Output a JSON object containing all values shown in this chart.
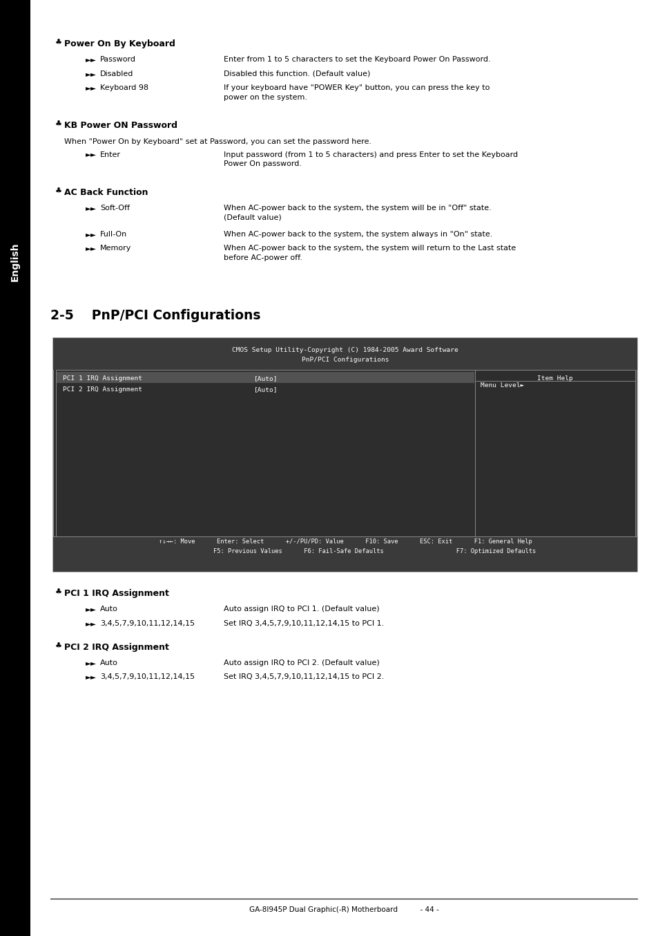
{
  "page_bg": "#ffffff",
  "sidebar_bg": "#000000",
  "sidebar_text": "English",
  "sidebar_text_color": "#ffffff",
  "title_section": "2-5    PnP/PCI Configurations",
  "footer_text": "GA-8I945P Dual Graphic(-R) Motherboard          - 44 -",
  "bios_header_line1": "CMOS Setup Utility-Copyright (C) 1984-2005 Award Software",
  "bios_header_line2": "PnP/PCI Configurations",
  "bios_bg": "#2d2d2d",
  "bios_header_bg": "#3a3a3a",
  "bios_text_color": "#ffffff",
  "bios_row1": "PCI 1 IRQ Assignment",
  "bios_row1_val": "[Auto]",
  "bios_row2": "PCI 2 IRQ Assignment",
  "bios_row2_val": "[Auto]",
  "bios_help_title": "Item Help",
  "bios_help_text": "Menu Level►",
  "bios_footer_line1": "↑↓→←: Move      Enter: Select      +/-/PU/PD: Value      F10: Save      ESC: Exit      F1: General Help",
  "bios_footer_line2": "                F5: Previous Values      F6: Fail-Safe Defaults                    F7: Optimized Defaults",
  "sections": [
    {
      "heading": "Power On By Keyboard",
      "items": [
        {
          "label": "Password",
          "desc": "Enter from 1 to 5 characters to set the Keyboard Power On Password.",
          "lines": 1
        },
        {
          "label": "Disabled",
          "desc": "Disabled this function. (Default value)",
          "lines": 1
        },
        {
          "label": "Keyboard 98",
          "desc": "If your keyboard have \"POWER Key\" button, you can press the key to\npower on the system.",
          "lines": 2
        }
      ]
    },
    {
      "heading": "KB Power ON Password",
      "intro": "When \"Power On by Keyboard\" set at Password, you can set the password here.",
      "items": [
        {
          "label": "Enter",
          "desc": "Input password (from 1 to 5 characters) and press Enter to set the Keyboard\nPower On password.",
          "lines": 2
        }
      ]
    },
    {
      "heading": "AC Back Function",
      "items": [
        {
          "label": "Soft-Off",
          "desc": "When AC-power back to the system, the system will be in \"Off\" state.\n(Default value)",
          "lines": 2
        },
        {
          "label": "Full-On",
          "desc": "When AC-power back to the system, the system always in \"On\" state.",
          "lines": 1
        },
        {
          "label": "Memory",
          "desc": "When AC-power back to the system, the system will return to the Last state\nbefore AC-power off.",
          "lines": 2
        }
      ]
    }
  ],
  "bottom_sections": [
    {
      "heading": "PCI 1 IRQ Assignment",
      "items": [
        {
          "label": "Auto",
          "desc": "Auto assign IRQ to PCI 1. (Default value)",
          "lines": 1
        },
        {
          "label": "3,4,5,7,9,10,11,12,14,15",
          "desc": "Set IRQ 3,4,5,7,9,10,11,12,14,15 to PCI 1.",
          "lines": 1
        }
      ]
    },
    {
      "heading": "PCI 2 IRQ Assignment",
      "items": [
        {
          "label": "Auto",
          "desc": "Auto assign IRQ to PCI 2. (Default value)",
          "lines": 1
        },
        {
          "label": "3,4,5,7,9,10,11,12,14,15",
          "desc": "Set IRQ 3,4,5,7,9,10,11,12,14,15 to PCI 2.",
          "lines": 1
        }
      ]
    }
  ],
  "font_size_body": 8.0,
  "font_size_heading": 9.0,
  "font_size_section_title": 13.5,
  "font_size_footer": 7.5,
  "font_size_bios": 6.8,
  "arrow": "►►"
}
